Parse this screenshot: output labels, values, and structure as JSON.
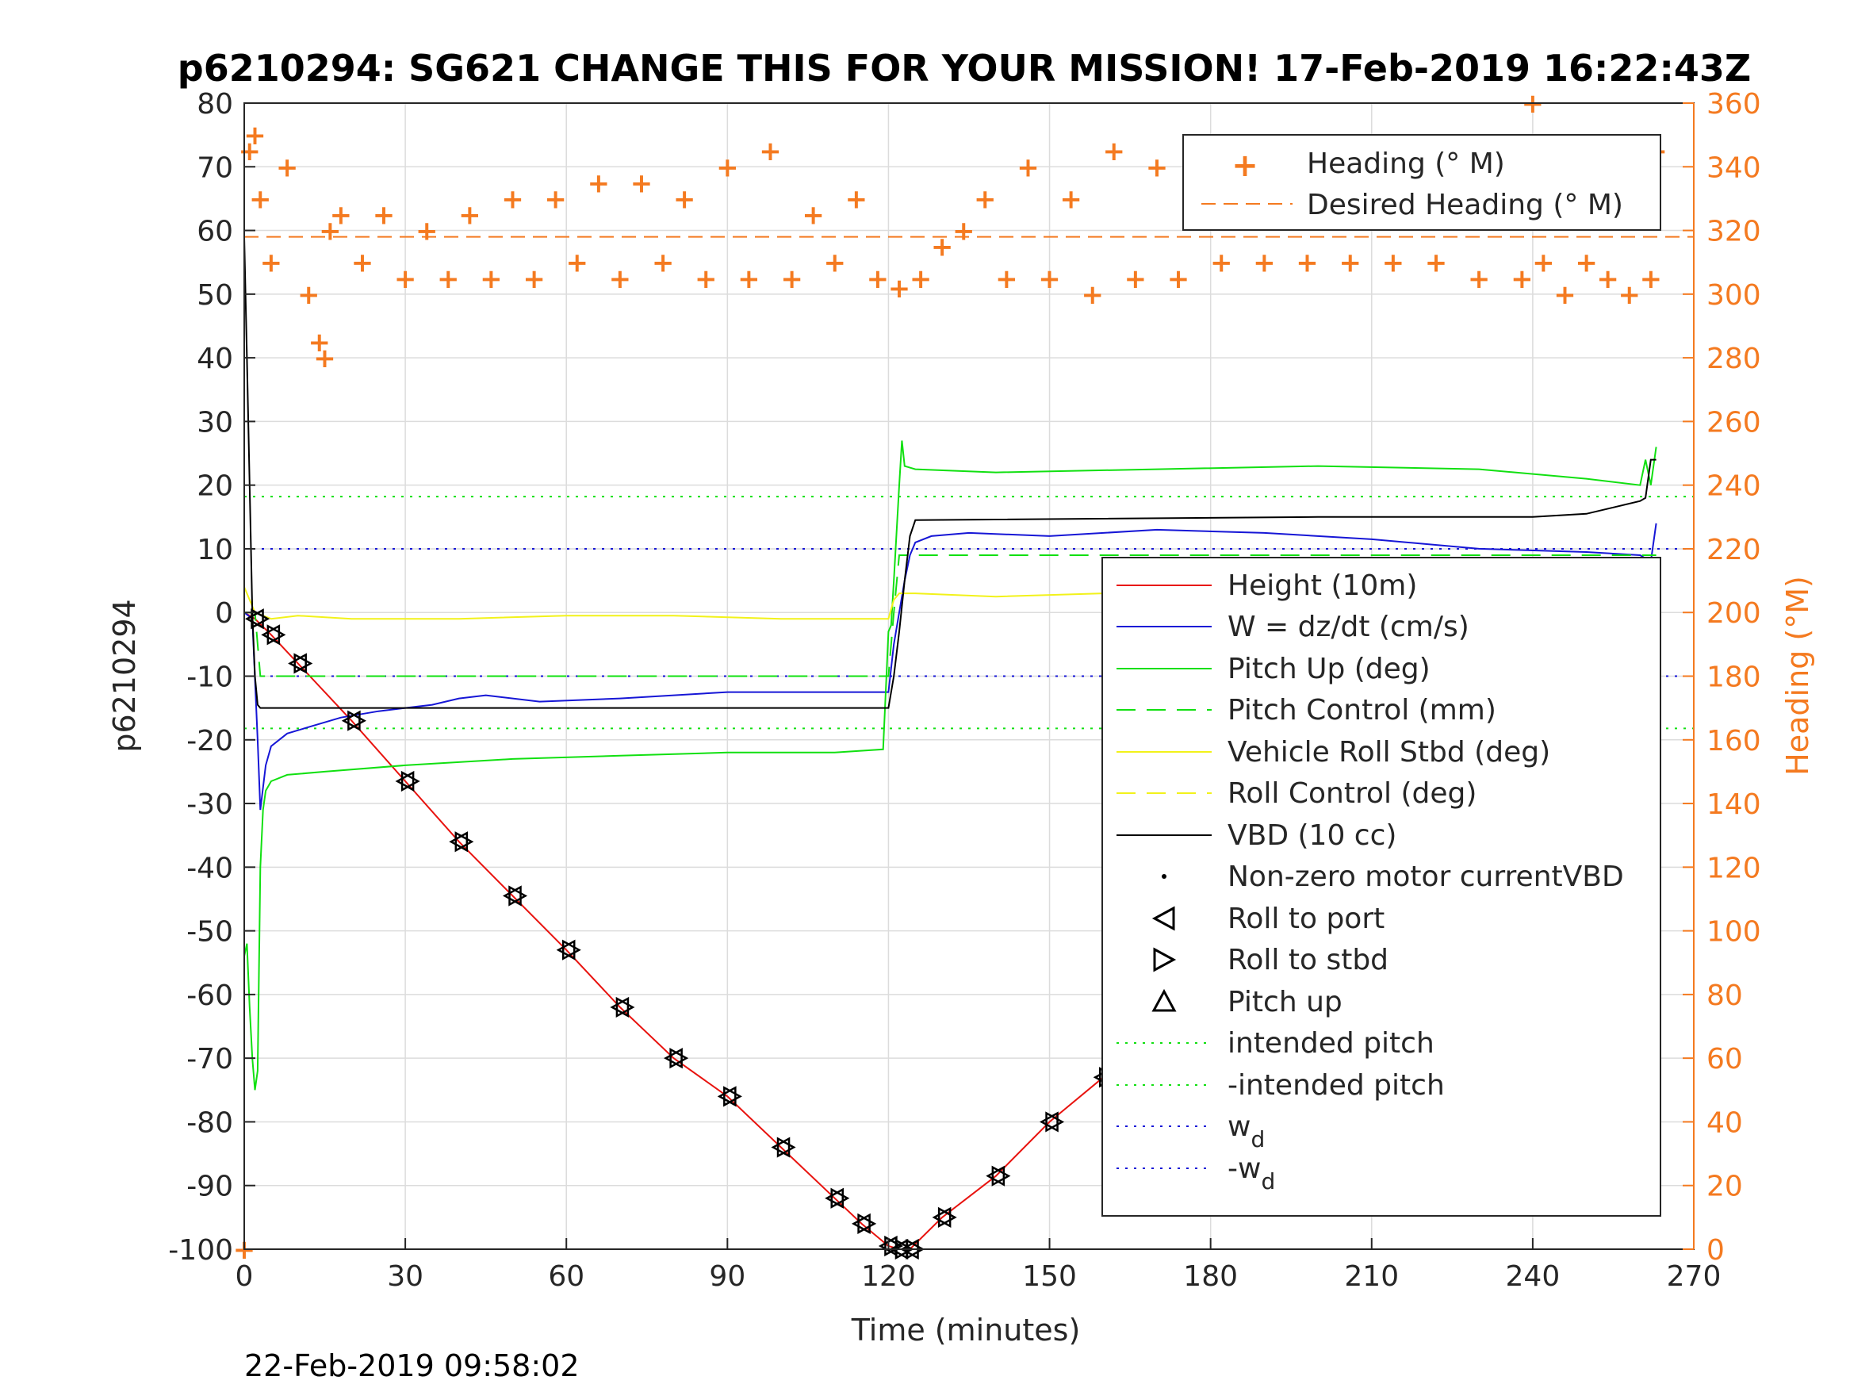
{
  "chart_data": {
    "type": "line",
    "title": "p6210294: SG621 CHANGE THIS FOR YOUR MISSION! 17-Feb-2019 16:22:43Z",
    "xlabel": "Time (minutes)",
    "ylabel_left": "p6210294",
    "ylabel_right": "Heading (°M)",
    "footer": "22-Feb-2019 09:58:02",
    "xlim": [
      0,
      270
    ],
    "ylim_left": [
      -100,
      80
    ],
    "ylim_right": [
      0,
      360
    ],
    "xticks": [
      0,
      30,
      60,
      90,
      120,
      150,
      180,
      210,
      240,
      270
    ],
    "yticks_left": [
      -100,
      -90,
      -80,
      -70,
      -60,
      -50,
      -40,
      -30,
      -20,
      -10,
      0,
      10,
      20,
      30,
      40,
      50,
      60,
      70,
      80
    ],
    "yticks_right": [
      0,
      20,
      40,
      60,
      80,
      100,
      120,
      140,
      160,
      180,
      200,
      220,
      240,
      260,
      280,
      300,
      320,
      340,
      360
    ],
    "grid": true,
    "colors": {
      "height": "#e8130f",
      "w": "#1616d6",
      "pitch": "#11e011",
      "roll": "#f2f21a",
      "vbd": "#000000",
      "heading": "#f47a20",
      "axis": "#262626"
    },
    "legend_top": {
      "placement": "top-right",
      "entries": [
        "Heading (° M)",
        "Desired Heading (° M)"
      ]
    },
    "legend_main": {
      "placement": "lower-right",
      "entries": [
        "Height (10m)",
        "W = dz/dt (cm/s)",
        "Pitch Up (deg)",
        "Pitch Control (mm)",
        "Vehicle Roll Stbd (deg)",
        "Roll Control (deg)",
        "VBD (10 cc)",
        "Non-zero motor currentVBD",
        "Roll to port",
        "Roll to stbd",
        "Pitch up",
        "intended pitch",
        "-intended pitch"
      ],
      "wd_label": "w",
      "wd_sub": "d",
      "neg_wd_label": "-w",
      "neg_wd_sub": "d"
    },
    "reference_lines": {
      "intended_pitch": 18.2,
      "neg_intended_pitch": -18.2,
      "w_d": 10,
      "neg_w_d": -10,
      "desired_heading": 318
    },
    "series": [
      {
        "name": "Height (10m)",
        "axis": "left",
        "x": [
          0,
          2,
          5,
          10,
          20,
          30,
          40,
          50,
          60,
          70,
          80,
          90,
          100,
          110,
          115,
          120,
          122,
          124,
          130,
          140,
          150,
          160,
          170,
          180,
          190,
          200,
          210,
          220,
          230,
          240,
          250,
          260,
          263
        ],
        "y": [
          0,
          -1,
          -3.5,
          -8,
          -17,
          -26.5,
          -36,
          -44.5,
          -53,
          -62,
          -70,
          -76,
          -84,
          -92,
          -96,
          -99.5,
          -100,
          -100,
          -95,
          -88.5,
          -80,
          -73,
          -66,
          -58.5,
          -51,
          -43.5,
          -35.5,
          -27.5,
          -20.5,
          -13,
          -7,
          -2.5,
          -0.5
        ]
      },
      {
        "name": "W = dz/dt (cm/s)",
        "axis": "left",
        "x": [
          0,
          1.5,
          2.5,
          3,
          4,
          5,
          8,
          12,
          18,
          25,
          30,
          35,
          40,
          45,
          55,
          70,
          90,
          110,
          120,
          121,
          122,
          123,
          124,
          125,
          128,
          135,
          150,
          170,
          190,
          210,
          230,
          250,
          260,
          262,
          263
        ],
        "y": [
          0,
          -1,
          -20,
          -31,
          -24,
          -21,
          -19,
          -18,
          -16.5,
          -15.5,
          -15,
          -14.5,
          -13.5,
          -13,
          -14,
          -13.5,
          -12.5,
          -12.5,
          -12.5,
          -5,
          0,
          5,
          9,
          11,
          12,
          12.5,
          12,
          13,
          12.5,
          11.5,
          10,
          9.5,
          9,
          8,
          14
        ]
      },
      {
        "name": "Pitch Up (deg)",
        "axis": "left",
        "x": [
          0,
          0.5,
          1,
          1.5,
          2,
          2.5,
          3,
          3.5,
          4,
          5,
          8,
          15,
          30,
          50,
          70,
          90,
          110,
          119,
          120,
          120.5,
          121,
          122,
          122.5,
          123,
          125,
          140,
          170,
          200,
          230,
          250,
          260,
          261,
          262,
          263
        ],
        "y": [
          -54,
          -52,
          -62,
          -70,
          -75,
          -72,
          -40,
          -31,
          -28,
          -26.5,
          -25.5,
          -25,
          -24,
          -23,
          -22.5,
          -22,
          -22,
          -21.5,
          -3,
          -2,
          5,
          20,
          27,
          23,
          22.5,
          22,
          22.5,
          23,
          22.5,
          21,
          20,
          24,
          20,
          26
        ]
      },
      {
        "name": "Pitch Control (mm)",
        "axis": "left",
        "x": [
          0,
          2,
          3,
          120,
          121,
          122,
          263
        ],
        "y": [
          0,
          0,
          -10,
          -10,
          0,
          9,
          9
        ]
      },
      {
        "name": "Vehicle Roll Stbd (deg)",
        "axis": "left",
        "x": [
          0,
          2,
          5,
          10,
          20,
          40,
          60,
          80,
          100,
          119,
          120,
          121,
          122,
          125,
          140,
          160,
          180,
          200,
          220,
          240,
          255,
          263
        ],
        "y": [
          4,
          0,
          -1,
          -0.5,
          -1,
          -1,
          -0.5,
          -0.5,
          -1,
          -1,
          -1,
          2,
          3,
          3,
          2.5,
          3,
          2.5,
          3,
          3,
          2.5,
          2.5,
          2
        ]
      },
      {
        "name": "VBD (10 cc)",
        "axis": "left",
        "x": [
          0,
          0.5,
          1,
          1.5,
          2,
          2.5,
          3,
          119,
          120,
          121,
          122,
          123,
          124,
          125,
          200,
          240,
          250,
          255,
          260,
          261,
          262,
          263
        ],
        "y": [
          59,
          40,
          20,
          0,
          -10,
          -14.5,
          -15,
          -15,
          -15,
          -10,
          -3,
          5,
          12,
          14.5,
          15,
          15,
          15.5,
          16.5,
          17.5,
          18,
          24,
          24
        ]
      },
      {
        "name": "Heading (° M)",
        "axis": "right",
        "x": [
          0,
          1,
          2,
          3,
          5,
          8,
          12,
          14,
          15,
          16,
          18,
          22,
          26,
          30,
          34,
          38,
          42,
          46,
          50,
          54,
          58,
          62,
          66,
          70,
          74,
          78,
          82,
          86,
          90,
          94,
          98,
          102,
          106,
          110,
          114,
          118,
          122,
          126,
          130,
          134,
          138,
          142,
          146,
          150,
          154,
          158,
          162,
          166,
          170,
          174,
          178,
          182,
          186,
          190,
          194,
          198,
          202,
          206,
          210,
          214,
          218,
          222,
          226,
          230,
          234,
          238,
          240,
          242,
          244,
          246,
          248,
          250,
          252,
          254,
          256,
          258,
          260,
          262,
          263
        ],
        "y": [
          0,
          345,
          350,
          330,
          310,
          340,
          300,
          285,
          280,
          320,
          325,
          310,
          325,
          305,
          320,
          305,
          325,
          305,
          330,
          305,
          330,
          310,
          335,
          305,
          335,
          310,
          330,
          305,
          340,
          305,
          345,
          305,
          325,
          310,
          330,
          305,
          302,
          305,
          315,
          320,
          330,
          305,
          340,
          305,
          330,
          300,
          345,
          305,
          340,
          305,
          335,
          310,
          330,
          310,
          335,
          310,
          330,
          310,
          335,
          310,
          335,
          310,
          330,
          305,
          335,
          305,
          360,
          310,
          345,
          300,
          330,
          310,
          345,
          305,
          330,
          300,
          340,
          305,
          345
        ]
      }
    ]
  }
}
